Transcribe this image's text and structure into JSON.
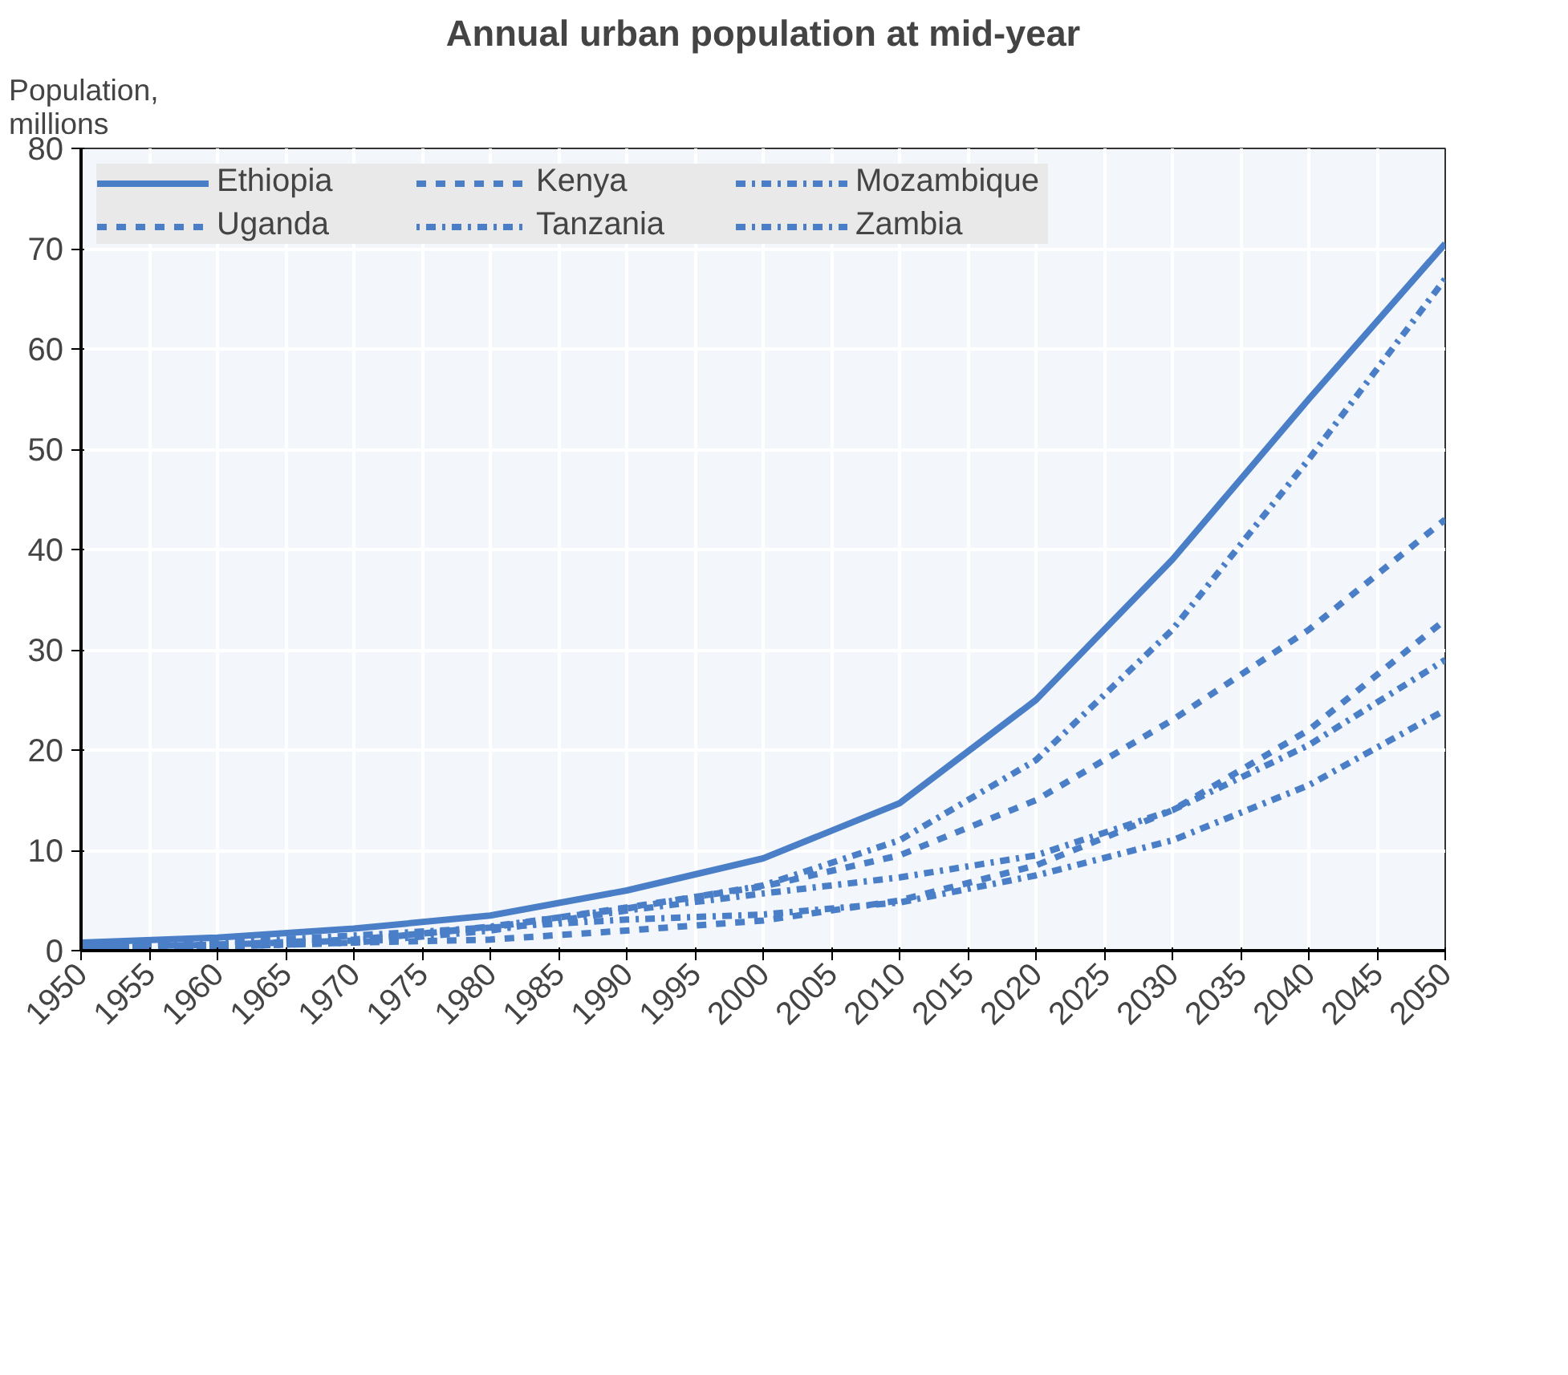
{
  "chart_data": {
    "type": "line",
    "title": "Annual urban population at mid-year",
    "ylabel": "Population,\nmillions",
    "x": [
      1950,
      1960,
      1970,
      1980,
      1990,
      2000,
      2010,
      2020,
      2030,
      2040,
      2050
    ],
    "xlim": [
      1950,
      2050
    ],
    "xticks": [
      1950,
      1955,
      1960,
      1965,
      1970,
      1975,
      1980,
      1985,
      1990,
      1995,
      2000,
      2005,
      2010,
      2015,
      2020,
      2025,
      2030,
      2035,
      2040,
      2045,
      2050
    ],
    "ylim": [
      0,
      80
    ],
    "yticks": [
      0,
      10,
      20,
      30,
      40,
      50,
      60,
      70,
      80
    ],
    "grid": true,
    "legend": "top left",
    "series": [
      {
        "name": "Ethiopia",
        "color": "#4a7fc8",
        "line_style": "solid",
        "values": [
          0.8,
          1.3,
          2.2,
          3.5,
          6.0,
          9.2,
          14.7,
          25,
          39,
          55,
          70.5
        ]
      },
      {
        "name": "Kenya",
        "color": "#4a7fc8",
        "line_style": "dashed",
        "values": [
          0.3,
          0.6,
          1.1,
          2.3,
          4.3,
          6.4,
          9.5,
          15,
          23,
          32,
          43
        ]
      },
      {
        "name": "Mozambique",
        "color": "#4a7fc8",
        "line_style": "dashdot",
        "values": [
          0.2,
          0.4,
          0.8,
          2.0,
          4.0,
          5.7,
          7.3,
          9.5,
          14,
          20.5,
          29
        ]
      },
      {
        "name": "Uganda",
        "color": "#4a7fc8",
        "line_style": "dashed",
        "values": [
          0.2,
          0.4,
          0.8,
          1.1,
          2.0,
          3.0,
          5,
          8.5,
          14,
          22,
          33
        ]
      },
      {
        "name": "Tanzania",
        "color": "#4a7fc8",
        "line_style": "dotdash",
        "values": [
          0.3,
          0.6,
          1.0,
          2.4,
          4.2,
          6.5,
          11,
          19,
          32,
          49,
          67
        ]
      },
      {
        "name": "Zambia",
        "color": "#4a7fc8",
        "line_style": "dashdot",
        "values": [
          0.4,
          0.8,
          1.5,
          2.3,
          3.1,
          3.6,
          4.8,
          7.5,
          11,
          16.5,
          24
        ]
      }
    ]
  }
}
